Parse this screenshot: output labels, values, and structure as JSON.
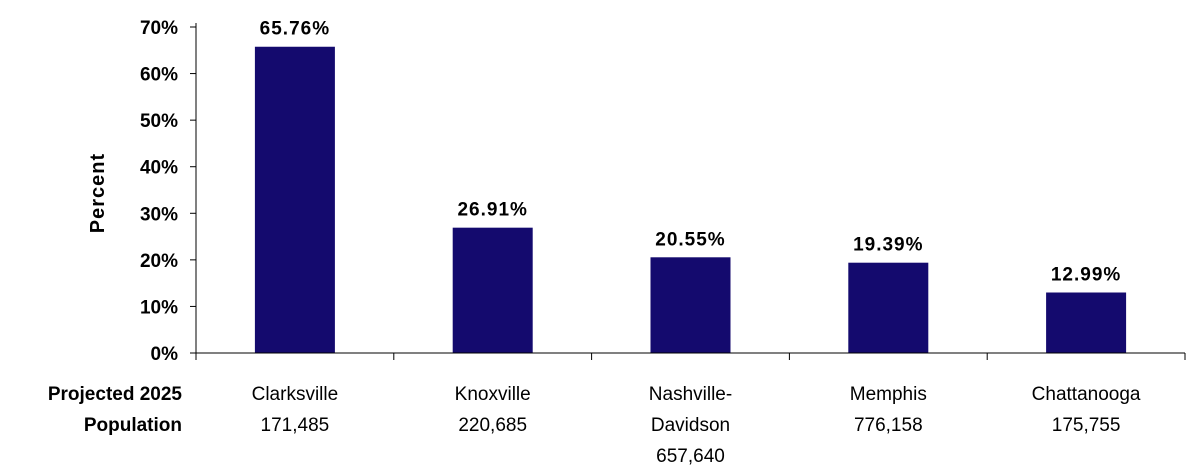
{
  "chart_data": {
    "type": "bar",
    "title": "",
    "ylabel": "Percent",
    "row_label": [
      "Projected 2025",
      "Population"
    ],
    "ylim": [
      0,
      70
    ],
    "yticks": [
      "0%",
      "10%",
      "20%",
      "30%",
      "40%",
      "50%",
      "60%",
      "70%"
    ],
    "grid": false,
    "bar_color": "#140a6e",
    "categories": [
      [
        "Clarksville",
        "171,485"
      ],
      [
        "Knoxville",
        "220,685"
      ],
      [
        "Nashville-",
        "Davidson",
        "657,640"
      ],
      [
        "Memphis",
        "776,158"
      ],
      [
        "Chattanooga",
        "175,755"
      ]
    ],
    "values": [
      65.76,
      26.91,
      20.55,
      19.39,
      12.99
    ],
    "data_labels": [
      "65.76%",
      "26.91%",
      "20.55%",
      "19.39%",
      "12.99%"
    ]
  }
}
